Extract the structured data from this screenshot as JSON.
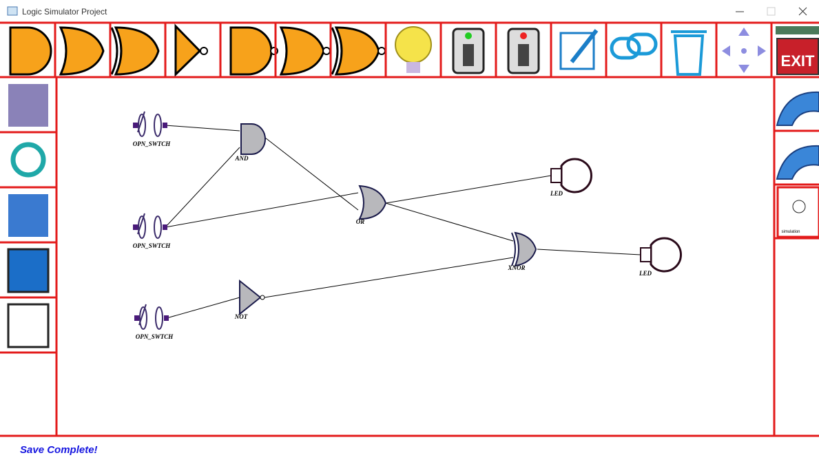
{
  "window": {
    "title": "Logic Simulator Project"
  },
  "toolbar": {
    "exit_label": "EXIT"
  },
  "sidebar_right": {
    "simulation_label": "simulation"
  },
  "circuit": {
    "labels": [
      "OPN_SWTCH",
      "OPN_SWTCH",
      "OPN_SWTCH",
      "AND",
      "OR",
      "NOT",
      "XNOR",
      "LED",
      "LED"
    ]
  },
  "status": {
    "message": "Save Complete!"
  }
}
